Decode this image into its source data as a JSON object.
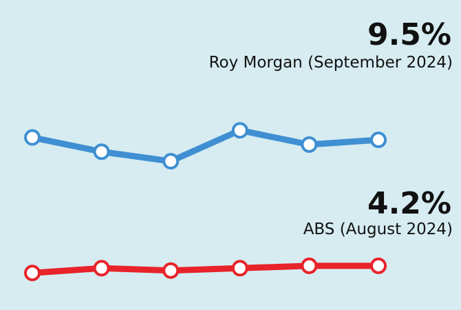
{
  "chart_data": {
    "type": "line",
    "categories": [
      null,
      null,
      null,
      null,
      null,
      null
    ],
    "series": [
      {
        "name": "Roy Morgan (September 2024)",
        "color": "#3f8fd2",
        "values": [
          9.6,
          9.0,
          8.6,
          9.9,
          9.3,
          9.5
        ],
        "value_labels": [
          null,
          null,
          null,
          null,
          null,
          "9.5%"
        ]
      },
      {
        "name": "ABS (August 2024)",
        "color": "#e8232a",
        "values": [
          3.9,
          4.1,
          4.0,
          4.1,
          4.2,
          4.2
        ],
        "value_labels": [
          null,
          null,
          null,
          null,
          null,
          "4.2%"
        ]
      }
    ],
    "ylim": [
      3.5,
      10.5
    ]
  }
}
